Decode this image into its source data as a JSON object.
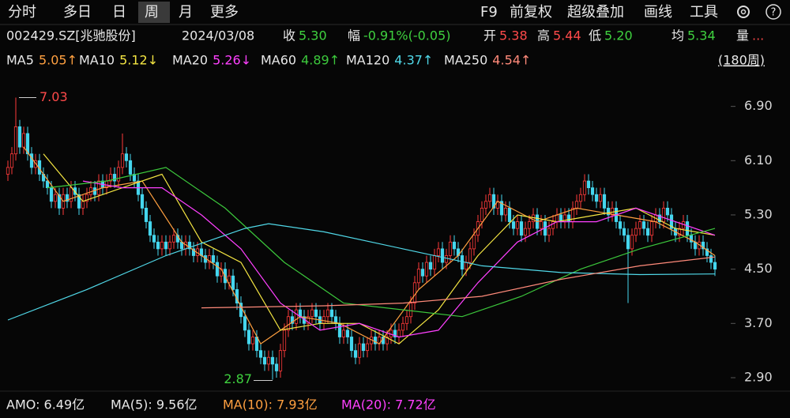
{
  "toolbar": {
    "tabs": [
      "分时",
      "多日",
      "日",
      "周",
      "月",
      "更多"
    ],
    "selected": "周",
    "tools": [
      "F9",
      "前复权",
      "超级叠加",
      "画线",
      "工具"
    ]
  },
  "quote": {
    "code": "002429.SZ[兆驰股份]",
    "date": "2024/03/08",
    "fields": [
      {
        "label": "收",
        "value": "5.30",
        "color": "#3fd13f"
      },
      {
        "label": "幅",
        "value": "-0.91%(-0.05)",
        "color": "#3fd13f"
      },
      {
        "label": "开",
        "value": "5.38",
        "color": "#ff4a4a"
      },
      {
        "label": "高",
        "value": "5.44",
        "color": "#ff4a4a"
      },
      {
        "label": "低",
        "value": "5.20",
        "color": "#3fd13f"
      },
      {
        "label": "均",
        "value": "5.34",
        "color": "#3fd13f"
      },
      {
        "label": "量",
        "value": "...",
        "color": "#ff4a4a"
      }
    ]
  },
  "volume": {
    "items": [
      {
        "text": "AMO: 6.49亿",
        "color": "#e8e8e8"
      },
      {
        "text": "MA(5): 9.56亿",
        "color": "#e8e8e8"
      },
      {
        "text": "MA(10): 7.93亿",
        "color": "#ffa040"
      },
      {
        "text": "MA(20): 7.72亿",
        "color": "#ff40ff"
      }
    ]
  },
  "chart_data": {
    "type": "candlestick",
    "range_label": "(180周)",
    "max_label": "7.03",
    "min_label": "2.87",
    "up_color": "#ff3b3b",
    "down_color": "#45d6ee",
    "ylim": [
      2.76,
      7.42
    ],
    "yticks": [
      {
        "value": 6.9,
        "label": "6.90"
      },
      {
        "value": 6.1,
        "label": "6.10"
      },
      {
        "value": 5.3,
        "label": "5.30"
      },
      {
        "value": 4.5,
        "label": "4.50"
      },
      {
        "value": 3.7,
        "label": "3.70"
      },
      {
        "value": 2.9,
        "label": "2.90"
      }
    ],
    "candles": [
      [
        5.9,
        6.1,
        5.8,
        6.0
      ],
      [
        6.0,
        6.3,
        5.9,
        6.2
      ],
      [
        6.2,
        7.03,
        6.1,
        6.6
      ],
      [
        6.6,
        6.7,
        6.2,
        6.3
      ],
      [
        6.3,
        6.6,
        6.2,
        6.5
      ],
      [
        6.5,
        6.6,
        6.1,
        6.2
      ],
      [
        6.2,
        6.3,
        5.9,
        6.0
      ],
      [
        6.0,
        6.2,
        5.9,
        6.1
      ],
      [
        6.1,
        6.2,
        5.8,
        5.9
      ],
      [
        5.9,
        6.0,
        5.7,
        5.8
      ],
      [
        5.8,
        5.9,
        5.6,
        5.7
      ],
      [
        5.7,
        5.8,
        5.4,
        5.5
      ],
      [
        5.5,
        5.7,
        5.4,
        5.6
      ],
      [
        5.6,
        5.7,
        5.3,
        5.4
      ],
      [
        5.4,
        5.7,
        5.3,
        5.6
      ],
      [
        5.6,
        5.7,
        5.4,
        5.5
      ],
      [
        5.5,
        5.8,
        5.4,
        5.7
      ],
      [
        5.7,
        5.8,
        5.5,
        5.6
      ],
      [
        5.6,
        5.7,
        5.3,
        5.4
      ],
      [
        5.4,
        5.6,
        5.3,
        5.5
      ],
      [
        5.5,
        5.7,
        5.4,
        5.6
      ],
      [
        5.6,
        5.8,
        5.5,
        5.7
      ],
      [
        5.7,
        5.8,
        5.5,
        5.6
      ],
      [
        5.6,
        5.9,
        5.5,
        5.8
      ],
      [
        5.8,
        5.9,
        5.6,
        5.7
      ],
      [
        5.7,
        5.9,
        5.6,
        5.8
      ],
      [
        5.8,
        6.0,
        5.7,
        5.9
      ],
      [
        5.9,
        6.0,
        5.7,
        5.8
      ],
      [
        5.8,
        6.1,
        5.7,
        6.0
      ],
      [
        6.0,
        6.5,
        5.9,
        6.2
      ],
      [
        6.2,
        6.3,
        6.0,
        6.1
      ],
      [
        6.1,
        6.2,
        5.8,
        5.9
      ],
      [
        5.9,
        6.0,
        5.7,
        5.8
      ],
      [
        5.8,
        5.9,
        5.5,
        5.6
      ],
      [
        5.6,
        5.7,
        5.3,
        5.4
      ],
      [
        5.4,
        5.5,
        5.1,
        5.2
      ],
      [
        5.2,
        5.3,
        4.9,
        5.0
      ],
      [
        5.0,
        5.1,
        4.8,
        4.9
      ],
      [
        4.9,
        5.0,
        4.7,
        4.8
      ],
      [
        4.8,
        5.0,
        4.7,
        4.9
      ],
      [
        4.9,
        5.0,
        4.7,
        4.8
      ],
      [
        4.8,
        5.0,
        4.7,
        4.9
      ],
      [
        4.9,
        5.1,
        4.8,
        5.0
      ],
      [
        5.0,
        5.1,
        4.8,
        4.9
      ],
      [
        4.9,
        5.0,
        4.7,
        4.8
      ],
      [
        4.8,
        5.0,
        4.7,
        4.9
      ],
      [
        4.9,
        5.0,
        4.7,
        4.8
      ],
      [
        4.8,
        4.9,
        4.6,
        4.7
      ],
      [
        4.7,
        4.9,
        4.6,
        4.8
      ],
      [
        4.8,
        4.9,
        4.6,
        4.7
      ],
      [
        4.7,
        4.8,
        4.5,
        4.6
      ],
      [
        4.6,
        4.8,
        4.5,
        4.7
      ],
      [
        4.7,
        4.8,
        4.5,
        4.6
      ],
      [
        4.6,
        4.7,
        4.3,
        4.4
      ],
      [
        4.4,
        4.6,
        4.3,
        4.5
      ],
      [
        4.5,
        4.6,
        4.2,
        4.3
      ],
      [
        4.3,
        4.5,
        4.2,
        4.4
      ],
      [
        4.4,
        4.5,
        4.1,
        4.2
      ],
      [
        4.2,
        4.3,
        3.9,
        4.0
      ],
      [
        4.0,
        4.1,
        3.7,
        3.8
      ],
      [
        3.8,
        3.9,
        3.5,
        3.6
      ],
      [
        3.6,
        3.7,
        3.3,
        3.4
      ],
      [
        3.4,
        3.6,
        3.3,
        3.5
      ],
      [
        3.5,
        3.6,
        3.2,
        3.3
      ],
      [
        3.3,
        3.4,
        3.1,
        3.2
      ],
      [
        3.2,
        3.3,
        3.0,
        3.1
      ],
      [
        3.1,
        3.3,
        3.0,
        3.2
      ],
      [
        3.2,
        3.3,
        2.87,
        3.1
      ],
      [
        3.1,
        3.2,
        2.9,
        3.0
      ],
      [
        3.0,
        3.4,
        2.9,
        3.3
      ],
      [
        3.3,
        3.7,
        3.2,
        3.6
      ],
      [
        3.6,
        3.9,
        3.5,
        3.8
      ],
      [
        3.8,
        3.9,
        3.6,
        3.7
      ],
      [
        3.7,
        4.0,
        3.6,
        3.9
      ],
      [
        3.9,
        4.0,
        3.7,
        3.8
      ],
      [
        3.8,
        3.9,
        3.6,
        3.7
      ],
      [
        3.7,
        3.9,
        3.6,
        3.8
      ],
      [
        3.8,
        4.0,
        3.7,
        3.9
      ],
      [
        3.9,
        4.0,
        3.7,
        3.8
      ],
      [
        3.8,
        3.9,
        3.6,
        3.7
      ],
      [
        3.7,
        3.9,
        3.6,
        3.8
      ],
      [
        3.8,
        4.0,
        3.7,
        3.9
      ],
      [
        3.9,
        4.0,
        3.7,
        3.8
      ],
      [
        3.8,
        3.9,
        3.6,
        3.7
      ],
      [
        3.7,
        3.8,
        3.4,
        3.5
      ],
      [
        3.5,
        3.7,
        3.4,
        3.6
      ],
      [
        3.6,
        3.7,
        3.4,
        3.5
      ],
      [
        3.5,
        3.6,
        3.2,
        3.3
      ],
      [
        3.3,
        3.4,
        3.1,
        3.2
      ],
      [
        3.2,
        3.5,
        3.1,
        3.4
      ],
      [
        3.4,
        3.5,
        3.2,
        3.3
      ],
      [
        3.3,
        3.5,
        3.2,
        3.4
      ],
      [
        3.4,
        3.6,
        3.3,
        3.5
      ],
      [
        3.5,
        3.6,
        3.3,
        3.4
      ],
      [
        3.4,
        3.6,
        3.3,
        3.5
      ],
      [
        3.5,
        3.6,
        3.3,
        3.4
      ],
      [
        3.4,
        3.6,
        3.3,
        3.5
      ],
      [
        3.5,
        3.7,
        3.4,
        3.6
      ],
      [
        3.6,
        3.7,
        3.4,
        3.5
      ],
      [
        3.5,
        3.7,
        3.4,
        3.6
      ],
      [
        3.6,
        3.8,
        3.5,
        3.7
      ],
      [
        3.7,
        3.9,
        3.6,
        3.8
      ],
      [
        3.8,
        4.1,
        3.7,
        4.0
      ],
      [
        4.0,
        4.4,
        3.9,
        4.3
      ],
      [
        4.3,
        4.6,
        4.2,
        4.5
      ],
      [
        4.5,
        4.6,
        4.3,
        4.4
      ],
      [
        4.4,
        4.7,
        4.3,
        4.6
      ],
      [
        4.6,
        4.7,
        4.4,
        4.5
      ],
      [
        4.5,
        4.8,
        4.4,
        4.7
      ],
      [
        4.7,
        4.9,
        4.6,
        4.8
      ],
      [
        4.8,
        4.9,
        4.5,
        4.6
      ],
      [
        4.6,
        4.8,
        4.5,
        4.7
      ],
      [
        4.7,
        5.0,
        4.6,
        4.9
      ],
      [
        4.9,
        5.0,
        4.7,
        4.8
      ],
      [
        4.8,
        4.9,
        4.6,
        4.7
      ],
      [
        4.7,
        4.8,
        4.4,
        4.5
      ],
      [
        4.5,
        4.7,
        4.4,
        4.6
      ],
      [
        4.6,
        4.9,
        4.5,
        4.8
      ],
      [
        4.8,
        5.1,
        4.7,
        5.0
      ],
      [
        5.0,
        5.3,
        4.9,
        5.2
      ],
      [
        5.2,
        5.5,
        5.1,
        5.4
      ],
      [
        5.4,
        5.6,
        5.3,
        5.5
      ],
      [
        5.5,
        5.7,
        5.4,
        5.6
      ],
      [
        5.6,
        5.7,
        5.3,
        5.4
      ],
      [
        5.4,
        5.6,
        5.3,
        5.5
      ],
      [
        5.5,
        5.6,
        5.2,
        5.3
      ],
      [
        5.3,
        5.5,
        5.2,
        5.4
      ],
      [
        5.4,
        5.5,
        5.1,
        5.2
      ],
      [
        5.2,
        5.3,
        5.0,
        5.1
      ],
      [
        5.1,
        5.3,
        5.0,
        5.2
      ],
      [
        5.2,
        5.3,
        4.9,
        5.0
      ],
      [
        5.0,
        5.2,
        4.9,
        5.1
      ],
      [
        5.1,
        5.3,
        5.0,
        5.2
      ],
      [
        5.2,
        5.4,
        5.1,
        5.3
      ],
      [
        5.3,
        5.4,
        5.0,
        5.1
      ],
      [
        5.1,
        5.3,
        5.0,
        5.2
      ],
      [
        5.2,
        5.3,
        4.9,
        5.0
      ],
      [
        5.0,
        5.2,
        4.9,
        5.1
      ],
      [
        5.1,
        5.3,
        5.0,
        5.2
      ],
      [
        5.2,
        5.4,
        5.1,
        5.3
      ],
      [
        5.3,
        5.4,
        5.1,
        5.2
      ],
      [
        5.2,
        5.4,
        5.1,
        5.3
      ],
      [
        5.3,
        5.4,
        5.1,
        5.2
      ],
      [
        5.2,
        5.5,
        5.1,
        5.4
      ],
      [
        5.4,
        5.6,
        5.3,
        5.5
      ],
      [
        5.5,
        5.7,
        5.4,
        5.6
      ],
      [
        5.6,
        5.9,
        5.5,
        5.8
      ],
      [
        5.8,
        5.9,
        5.6,
        5.7
      ],
      [
        5.7,
        5.8,
        5.5,
        5.6
      ],
      [
        5.6,
        5.7,
        5.4,
        5.5
      ],
      [
        5.5,
        5.7,
        5.4,
        5.6
      ],
      [
        5.6,
        5.7,
        5.3,
        5.4
      ],
      [
        5.4,
        5.5,
        5.2,
        5.3
      ],
      [
        5.3,
        5.5,
        5.2,
        5.4
      ],
      [
        5.4,
        5.5,
        5.1,
        5.2
      ],
      [
        5.2,
        5.3,
        5.0,
        5.1
      ],
      [
        5.1,
        5.2,
        4.9,
        5.0
      ],
      [
        5.0,
        5.1,
        4.0,
        4.8
      ],
      [
        4.8,
        5.1,
        4.7,
        5.0
      ],
      [
        5.0,
        5.2,
        4.9,
        5.1
      ],
      [
        5.1,
        5.3,
        5.0,
        5.2
      ],
      [
        5.2,
        5.3,
        5.0,
        5.1
      ],
      [
        5.1,
        5.2,
        4.9,
        5.0
      ],
      [
        5.0,
        5.3,
        4.9,
        5.2
      ],
      [
        5.2,
        5.4,
        5.1,
        5.3
      ],
      [
        5.3,
        5.4,
        5.1,
        5.2
      ],
      [
        5.2,
        5.5,
        5.1,
        5.4
      ],
      [
        5.4,
        5.5,
        5.2,
        5.3
      ],
      [
        5.3,
        5.4,
        5.0,
        5.1
      ],
      [
        5.1,
        5.2,
        4.9,
        5.0
      ],
      [
        5.0,
        5.2,
        4.9,
        5.1
      ],
      [
        5.1,
        5.3,
        5.0,
        5.2
      ],
      [
        5.2,
        5.3,
        4.9,
        5.0
      ],
      [
        5.0,
        5.1,
        4.8,
        4.9
      ],
      [
        4.9,
        5.0,
        4.7,
        4.8
      ],
      [
        4.8,
        5.0,
        4.7,
        4.9
      ],
      [
        4.9,
        5.0,
        4.7,
        4.8
      ],
      [
        4.8,
        4.9,
        4.6,
        4.7
      ],
      [
        4.7,
        4.8,
        4.5,
        4.6
      ],
      [
        4.6,
        4.7,
        4.4,
        4.5
      ]
    ],
    "series": [
      {
        "name": "MA5",
        "legend_value": "5.05↑",
        "color": "#ffa040",
        "x": [
          4,
          14,
          24,
          34,
          44,
          54,
          64,
          74,
          84,
          94,
          104,
          114,
          124,
          134,
          144,
          154,
          164,
          174,
          179
        ],
        "values": [
          6.3,
          5.5,
          5.7,
          5.8,
          4.9,
          4.5,
          3.4,
          3.8,
          3.7,
          3.4,
          4.2,
          4.7,
          5.5,
          5.2,
          5.4,
          5.3,
          5.2,
          4.9,
          4.7
        ]
      },
      {
        "name": "MA10",
        "legend_value": "5.12↓",
        "color": "#f4e542",
        "x": [
          9,
          19,
          29,
          39,
          49,
          59,
          69,
          79,
          89,
          99,
          109,
          119,
          129,
          139,
          149,
          159,
          169,
          179
        ],
        "values": [
          6.2,
          5.5,
          5.7,
          5.9,
          4.9,
          4.6,
          3.6,
          3.7,
          3.7,
          3.4,
          3.9,
          4.7,
          5.3,
          5.2,
          5.3,
          5.4,
          5.1,
          5.0
        ]
      },
      {
        "name": "MA20",
        "legend_value": "5.26↓",
        "color": "#ff40ff",
        "x": [
          19,
          29,
          39,
          49,
          59,
          69,
          79,
          89,
          99,
          109,
          119,
          129,
          139,
          149,
          159,
          169,
          179
        ],
        "values": [
          5.8,
          5.7,
          5.7,
          5.3,
          4.8,
          4.0,
          3.6,
          3.7,
          3.5,
          3.6,
          4.3,
          4.9,
          5.2,
          5.2,
          5.4,
          5.2,
          5.0
        ]
      },
      {
        "name": "MA60",
        "legend_value": "4.89↑",
        "color": "#3cc83c",
        "x": [
          10,
          25,
          40,
          55,
          70,
          85,
          100,
          115,
          130,
          145,
          160,
          179
        ],
        "values": [
          5.7,
          5.8,
          6.0,
          5.4,
          4.6,
          4.0,
          3.9,
          3.8,
          4.1,
          4.5,
          4.8,
          5.1
        ]
      },
      {
        "name": "MA120",
        "legend_value": "4.37↑",
        "color": "#50d8e8",
        "x": [
          0,
          20,
          40,
          60,
          66,
          80,
          100,
          120,
          140,
          160,
          179
        ],
        "values": [
          3.75,
          4.2,
          4.7,
          5.1,
          5.17,
          5.05,
          4.8,
          4.55,
          4.45,
          4.42,
          4.43
        ]
      },
      {
        "name": "MA250",
        "legend_value": "4.54↑",
        "color": "#ff8a7a",
        "x": [
          49,
          80,
          100,
          120,
          140,
          160,
          179
        ],
        "values": [
          3.93,
          3.96,
          4.0,
          4.1,
          4.35,
          4.55,
          4.68
        ]
      }
    ]
  }
}
